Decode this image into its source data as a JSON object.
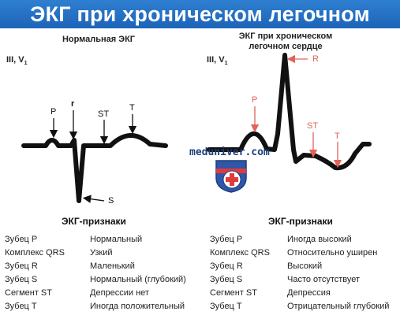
{
  "title": "ЭКГ при хроническом легочном сердце",
  "left": {
    "panel_title": "Нормальная ЭКГ",
    "lead": "III, V",
    "lead_sub": "1",
    "labels": {
      "p": "P",
      "r": "r",
      "st": "ST",
      "t": "T",
      "s": "S"
    },
    "signs_title": "ЭКГ-признаки",
    "rows": [
      {
        "name": "Зубец P",
        "value": "Нормальный"
      },
      {
        "name": "Комплекс QRS",
        "value": "Узкий"
      },
      {
        "name": "Зубец R",
        "value": "Маленький"
      },
      {
        "name": "Зубец S",
        "value": "Нормальный (глубокий)"
      },
      {
        "name": "Сегмент ST",
        "value": "Депрессии нет"
      },
      {
        "name": "Зубец T",
        "value": "Иногда положительный"
      }
    ]
  },
  "right": {
    "panel_title_line1": "ЭКГ при хроническом",
    "panel_title_line2": "легочном сердце",
    "lead": "III, V",
    "lead_sub": "1",
    "labels": {
      "r": "R",
      "p": "P",
      "st": "ST",
      "t": "T"
    },
    "signs_title": "ЭКГ-признаки",
    "rows": [
      {
        "name": "Зубец P",
        "value": "Иногда высокий"
      },
      {
        "name": "Комплекс QRS",
        "value": "Относительно уширен"
      },
      {
        "name": "Зубец R",
        "value": "Высокий"
      },
      {
        "name": "Зубец S",
        "value": "Часто отсутствует"
      },
      {
        "name": "Сегмент ST",
        "value": "Депрессия"
      },
      {
        "name": "Зубец T",
        "value": "Отрицательный глубокий"
      }
    ]
  },
  "watermark": "meduniver.com",
  "colors": {
    "title_bg": "#1f6bbf",
    "arrow_red": "#e0635a",
    "trace": "#111111"
  }
}
